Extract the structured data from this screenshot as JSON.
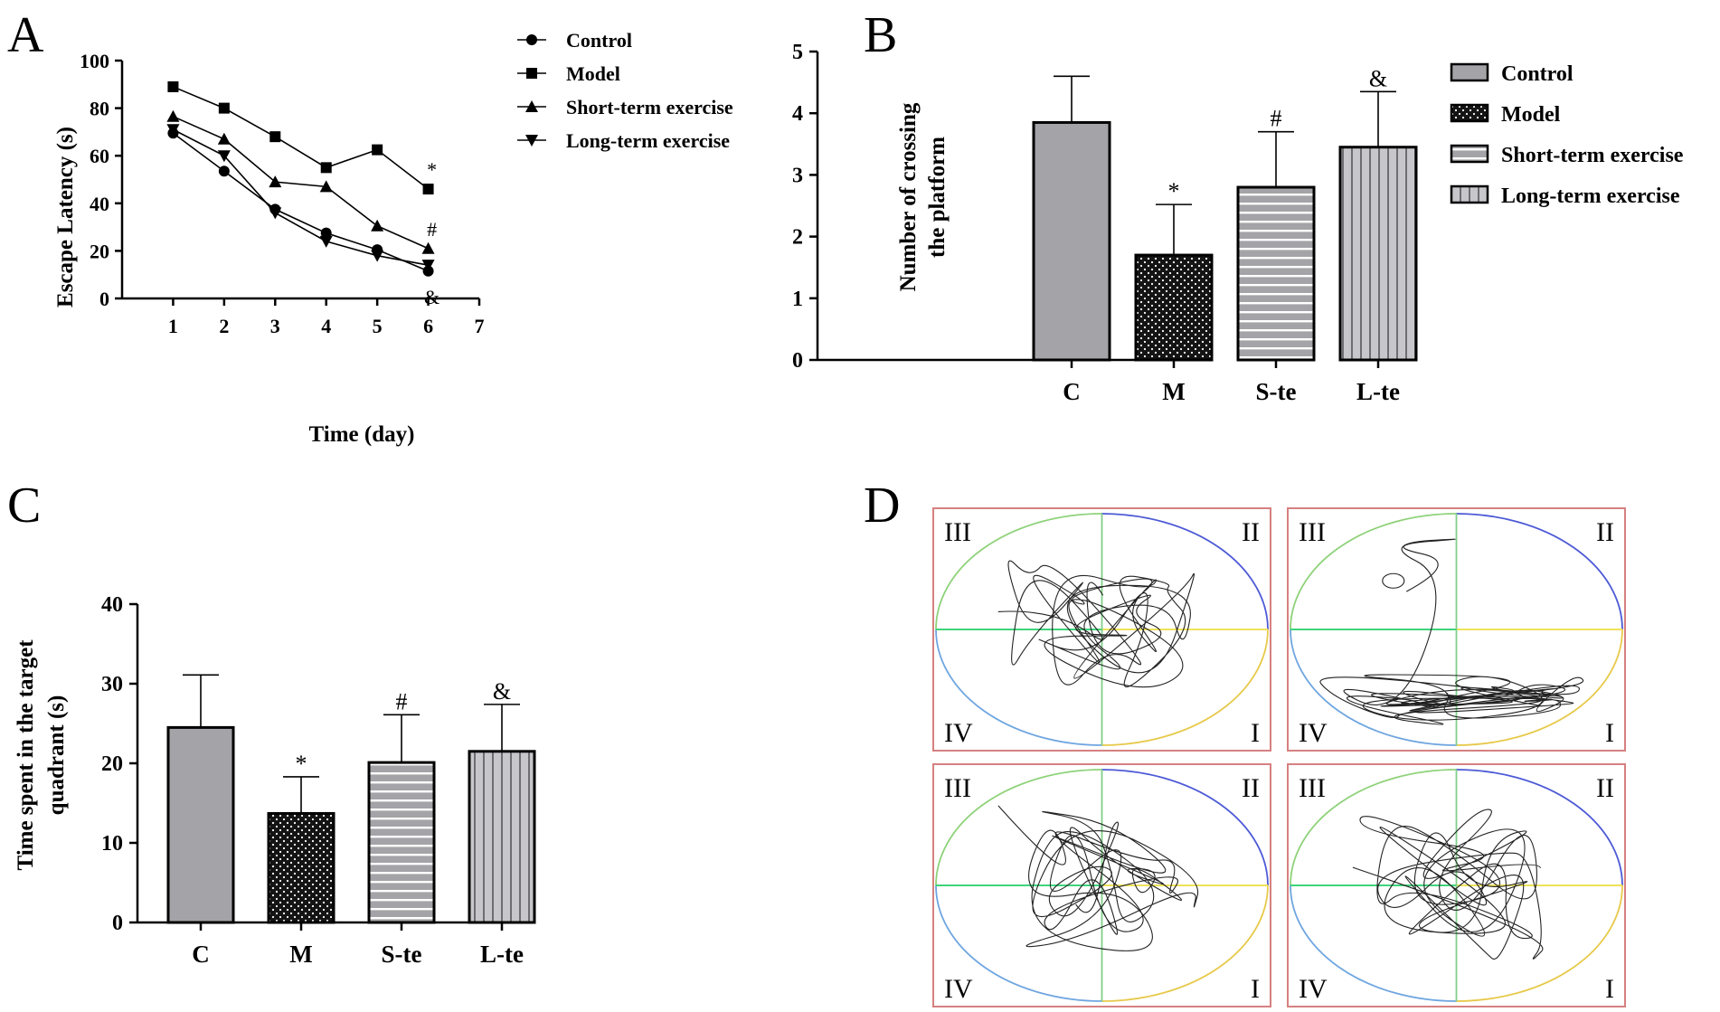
{
  "panel_labels": {
    "a": "A",
    "b": "B",
    "c": "C",
    "d": "D"
  },
  "colors": {
    "control": "#a4a3a8",
    "model": "#141414",
    "short_term": "#a4a3a8",
    "long_term": "#c7c6ca",
    "track_frame": "#d68080"
  },
  "chart_data": [
    {
      "id": "A",
      "type": "line",
      "title": "",
      "xlabel": "Time (day)",
      "ylabel": "Escape Latency (s)",
      "x": [
        1,
        2,
        3,
        4,
        5,
        6
      ],
      "xlim": [
        0,
        7
      ],
      "xticks": [
        "1",
        "2",
        "3",
        "4",
        "5",
        "6",
        "7"
      ],
      "ylim": [
        0,
        100
      ],
      "yticks": [
        "0",
        "20",
        "40",
        "60",
        "80",
        "100"
      ],
      "legend_position": "top-right",
      "series": [
        {
          "name": "Control",
          "marker": "circle",
          "values": [
            69.5,
            53.5,
            37.5,
            27.5,
            20.5,
            11.5
          ]
        },
        {
          "name": "Model",
          "marker": "square",
          "values": [
            89,
            80,
            68,
            55,
            62.5,
            46
          ]
        },
        {
          "name": "Short-term exercise",
          "marker": "triangle-up",
          "values": [
            76.5,
            67,
            49,
            47,
            30.5,
            21
          ]
        },
        {
          "name": "Long-term exercise",
          "marker": "triangle-down",
          "values": [
            71,
            60,
            36,
            24,
            18,
            14
          ]
        }
      ],
      "annotations": [
        {
          "series": "Model",
          "label": "*"
        },
        {
          "series": "Short-term exercise",
          "label": "#"
        },
        {
          "series": "Control",
          "label": "&"
        }
      ]
    },
    {
      "id": "B",
      "type": "bar",
      "title": "",
      "xlabel": "",
      "ylabel": "Number of crossing the platform",
      "ylabel_lines": [
        "Number of crossing",
        "the platform"
      ],
      "categories": [
        "C",
        "M",
        "S-te",
        "L-te"
      ],
      "values": [
        3.85,
        1.7,
        2.8,
        3.45
      ],
      "errors": [
        0.75,
        0.82,
        0.9,
        0.9
      ],
      "significance": [
        "",
        "*",
        "#",
        "&"
      ],
      "ylim": [
        0,
        5
      ],
      "yticks": [
        "0",
        "1",
        "2",
        "3",
        "4",
        "5"
      ],
      "legend_position": "top-right",
      "legend": [
        "Control",
        "Model",
        "Short-term exercise",
        "Long-term exercise"
      ]
    },
    {
      "id": "C",
      "type": "bar",
      "title": "",
      "xlabel": "",
      "ylabel": "Time spent in the target quadrant (s)",
      "ylabel_lines": [
        "Time spent in the target",
        "quadrant (s)"
      ],
      "categories": [
        "C",
        "M",
        "S-te",
        "L-te"
      ],
      "values": [
        24.5,
        13.7,
        20.1,
        21.5
      ],
      "errors": [
        6.6,
        4.6,
        6.0,
        5.9
      ],
      "significance": [
        "",
        "*",
        "#",
        "&"
      ],
      "ylim": [
        0,
        40
      ],
      "yticks": [
        "0",
        "10",
        "20",
        "30",
        "40"
      ]
    }
  ],
  "tracks": {
    "quadrant_labels": [
      "III",
      "II",
      "IV",
      "I"
    ]
  }
}
